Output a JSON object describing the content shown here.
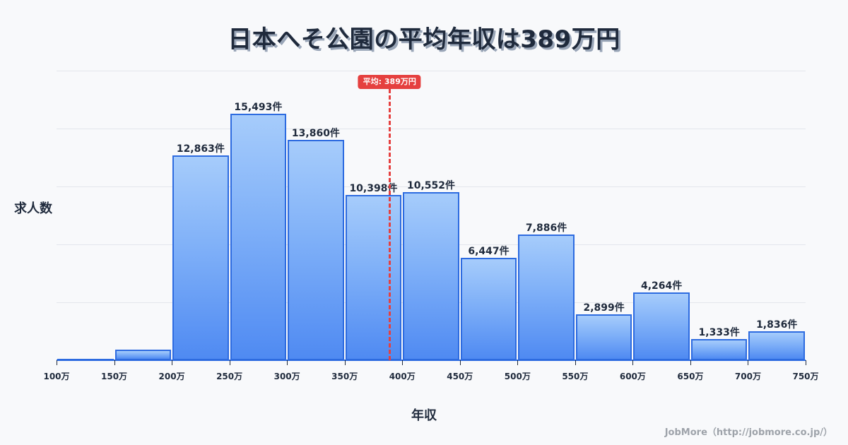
{
  "title": "日本へそ公園の平均年収は389万円",
  "axes": {
    "ylabel": "求人数",
    "xlabel": "年収"
  },
  "footer": "JobMore（http://jobmore.co.jp/）",
  "average": {
    "label": "平均: 389万円",
    "value": 389
  },
  "colors": {
    "bar_border": "#2d6be0",
    "bar_top": "#a6ccfb",
    "bar_bottom": "#4f8af2",
    "average_line": "#e5403f",
    "text": "#1f2a3c",
    "background": "#f8f9fb"
  },
  "chart_data": {
    "type": "bar",
    "title": "日本へそ公園の平均年収は389万円",
    "xlabel": "年収",
    "ylabel": "求人数",
    "bin_edges": [
      100,
      150,
      200,
      250,
      300,
      350,
      400,
      450,
      500,
      550,
      600,
      650,
      700,
      750
    ],
    "tick_labels": [
      "100万",
      "150万",
      "200万",
      "250万",
      "300万",
      "350万",
      "400万",
      "450万",
      "500万",
      "550万",
      "600万",
      "650万",
      "700万",
      "750万"
    ],
    "categories": [
      "100-150万",
      "150-200万",
      "200-250万",
      "250-300万",
      "300-350万",
      "350-400万",
      "400-450万",
      "450-500万",
      "500-550万",
      "550-600万",
      "600-650万",
      "650-700万",
      "700-750万"
    ],
    "values": [
      60,
      660,
      12863,
      15493,
      13860,
      10398,
      10552,
      6447,
      7886,
      2899,
      4264,
      1333,
      1836
    ],
    "labels": [
      "",
      "",
      "12,863件",
      "15,493件",
      "13,860件",
      "10,398件",
      "10,552件",
      "6,447件",
      "7,886件",
      "2,899件",
      "4,264件",
      "1,333件",
      "1,836件"
    ],
    "ylim": [
      0,
      18200
    ],
    "grid": true,
    "annotations": [
      {
        "type": "vline",
        "x": 389,
        "label": "平均: 389万円",
        "style": "dashed",
        "color": "#e5403f"
      }
    ]
  }
}
